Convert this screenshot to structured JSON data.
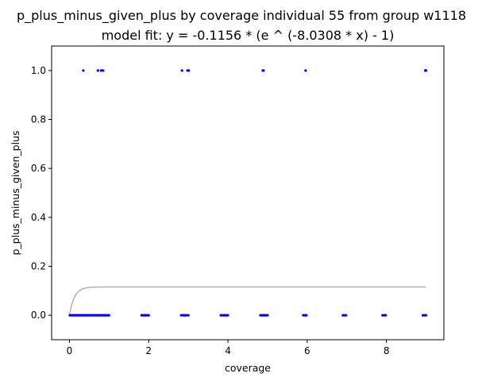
{
  "chart_data": {
    "type": "scatter",
    "title": "p_plus_minus_given_plus by coverage individual 55 from group w1118",
    "subtitle": "model fit: y = -0.1156 * (e ^ (-8.0308 * x) - 1)",
    "xlabel": "coverage",
    "ylabel": "p_plus_minus_given_plus",
    "xlim": [
      -0.45,
      9.45
    ],
    "ylim": [
      -0.1,
      1.1
    ],
    "xticks": [
      0,
      2,
      4,
      6,
      8
    ],
    "xtick_labels": [
      "0",
      "2",
      "4",
      "6",
      "8"
    ],
    "yticks": [
      0.0,
      0.2,
      0.4,
      0.6,
      0.8,
      1.0
    ],
    "ytick_labels": [
      "0.0",
      "0.2",
      "0.4",
      "0.6",
      "0.8",
      "1.0"
    ],
    "grid": false,
    "point_color": "#0000ff",
    "fit_color": "#b0b0b0",
    "points": {
      "x": [
        0.35,
        0.72,
        0.8,
        0.85,
        2.84,
        2.98,
        3.01,
        4.88,
        4.9,
        5.96,
        8.98,
        8.99,
        9.0,
        0.01,
        0.03,
        0.05,
        0.08,
        0.1,
        0.12,
        0.15,
        0.18,
        0.2,
        0.22,
        0.25,
        0.28,
        0.3,
        0.32,
        0.35,
        0.38,
        0.4,
        0.42,
        0.45,
        0.48,
        0.5,
        0.52,
        0.55,
        0.58,
        0.6,
        0.62,
        0.65,
        0.68,
        0.7,
        0.72,
        0.75,
        0.78,
        0.8,
        0.82,
        0.85,
        0.88,
        0.9,
        0.92,
        0.95,
        0.98,
        1.0,
        1.82,
        1.85,
        1.88,
        1.9,
        1.92,
        1.95,
        1.98,
        2.0,
        2.82,
        2.85,
        2.88,
        2.9,
        2.93,
        2.96,
        3.0,
        3.82,
        3.85,
        3.88,
        3.9,
        3.92,
        3.95,
        3.98,
        4.0,
        4.82,
        4.85,
        4.88,
        4.9,
        4.92,
        4.95,
        4.98,
        5.0,
        5.9,
        5.93,
        5.96,
        5.98,
        6.9,
        6.93,
        6.96,
        6.98,
        7.9,
        7.93,
        7.96,
        7.98,
        8.92,
        8.95,
        8.98,
        9.0
      ],
      "y": [
        1,
        1,
        1,
        1,
        1,
        1,
        1,
        1,
        1,
        1,
        1,
        1,
        1,
        0,
        0,
        0,
        0,
        0,
        0,
        0,
        0,
        0,
        0,
        0,
        0,
        0,
        0,
        0,
        0,
        0,
        0,
        0,
        0,
        0,
        0,
        0,
        0,
        0,
        0,
        0,
        0,
        0,
        0,
        0,
        0,
        0,
        0,
        0,
        0,
        0,
        0,
        0,
        0,
        0,
        0,
        0,
        0,
        0,
        0,
        0,
        0,
        0,
        0,
        0,
        0,
        0,
        0,
        0,
        0,
        0,
        0,
        0,
        0,
        0,
        0,
        0,
        0,
        0,
        0,
        0,
        0,
        0,
        0,
        0,
        0,
        0,
        0,
        0,
        0,
        0,
        0,
        0,
        0,
        0,
        0,
        0,
        0,
        0,
        0,
        0,
        0
      ]
    },
    "fit": {
      "a": -0.1156,
      "b": -8.0308,
      "x_range": [
        0,
        9
      ]
    }
  }
}
